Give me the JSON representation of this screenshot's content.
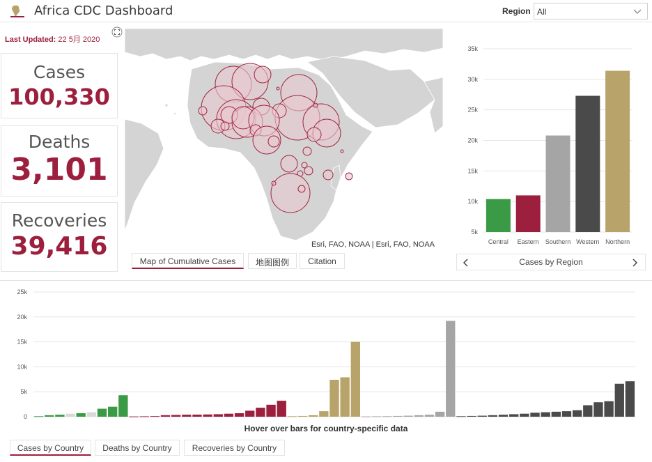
{
  "header": {
    "title": "Africa CDC Dashboard",
    "region_label": "Region",
    "region_value": "All"
  },
  "updated": {
    "label": "Last Updated:",
    "value": "22 5月 2020"
  },
  "kpis": {
    "cases": {
      "label": "Cases",
      "value": "100,330"
    },
    "deaths": {
      "label": "Deaths",
      "value": "3,101"
    },
    "recoveries": {
      "label": "Recoveries",
      "value": "39,416"
    }
  },
  "map": {
    "credit": "Esri, FAO, NOAA | Esri, FAO, NOAA",
    "tabs": [
      "Map of Cumulative Cases",
      "地图图例",
      "Citation"
    ],
    "active_tab": 0,
    "colors": {
      "land": "#d4d4d4",
      "water": "#ffffff",
      "bubble_fill": "#e8c8cf",
      "bubble_stroke": "#a0253f"
    }
  },
  "region_panel": {
    "title": "Cases by Region",
    "prev_icon": "chevron-left-icon",
    "next_icon": "chevron-right-icon"
  },
  "country_panel": {
    "note": "Hover over bars for country-specific data",
    "tabs": [
      "Cases by Country",
      "Deaths by Country",
      "Recoveries by Country"
    ],
    "active_tab": 0
  },
  "colors": {
    "accent": "#9c1f3d",
    "central": "#3a9a46",
    "eastern": "#9c1f3d",
    "southern": "#a5a5a5",
    "western": "#4a4a4a",
    "northern": "#b8a46a",
    "light": "#d9d9d9"
  },
  "chart_data": [
    {
      "type": "bar",
      "title": "Cases by Region",
      "categories": [
        "Central",
        "Eastern",
        "Southern",
        "Western",
        "Northern"
      ],
      "values": [
        10400,
        11000,
        20800,
        27300,
        31400
      ],
      "colors": [
        "#3a9a46",
        "#9c1f3d",
        "#a5a5a5",
        "#4a4a4a",
        "#b8a46a"
      ],
      "ylim": [
        5000,
        35000
      ],
      "yticks": [
        5000,
        10000,
        15000,
        20000,
        25000,
        30000,
        35000
      ],
      "ytick_labels": [
        "5k",
        "10k",
        "15k",
        "20k",
        "25k",
        "30k",
        "35k"
      ],
      "grid": true
    },
    {
      "type": "bar",
      "title": "Cases by Country",
      "ylim": [
        0,
        25000
      ],
      "yticks": [
        0,
        5000,
        10000,
        15000,
        20000,
        25000
      ],
      "ytick_labels": [
        "0",
        "5k",
        "10k",
        "15k",
        "20k",
        "25k"
      ],
      "grid": true,
      "values": [
        100,
        300,
        400,
        600,
        700,
        900,
        1600,
        2000,
        4300,
        50,
        80,
        120,
        300,
        350,
        400,
        420,
        450,
        500,
        600,
        700,
        1200,
        1800,
        2400,
        3200,
        100,
        150,
        300,
        1100,
        7400,
        7900,
        15000,
        50,
        80,
        100,
        150,
        200,
        300,
        400,
        1000,
        19200,
        100,
        150,
        200,
        300,
        400,
        500,
        600,
        800,
        900,
        1000,
        1100,
        1300,
        2300,
        2900,
        3100,
        6600,
        7100
      ],
      "colors": [
        "#3a9a46",
        "#3a9a46",
        "#3a9a46",
        "#d9d9d9",
        "#3a9a46",
        "#d9d9d9",
        "#3a9a46",
        "#3a9a46",
        "#3a9a46",
        "#9c1f3d",
        "#9c1f3d",
        "#9c1f3d",
        "#9c1f3d",
        "#9c1f3d",
        "#9c1f3d",
        "#9c1f3d",
        "#9c1f3d",
        "#9c1f3d",
        "#9c1f3d",
        "#9c1f3d",
        "#9c1f3d",
        "#9c1f3d",
        "#9c1f3d",
        "#9c1f3d",
        "#b8a46a",
        "#b8a46a",
        "#b8a46a",
        "#b8a46a",
        "#b8a46a",
        "#b8a46a",
        "#b8a46a",
        "#a5a5a5",
        "#a5a5a5",
        "#a5a5a5",
        "#a5a5a5",
        "#a5a5a5",
        "#a5a5a5",
        "#a5a5a5",
        "#a5a5a5",
        "#a5a5a5",
        "#4a4a4a",
        "#4a4a4a",
        "#4a4a4a",
        "#4a4a4a",
        "#4a4a4a",
        "#4a4a4a",
        "#4a4a4a",
        "#4a4a4a",
        "#4a4a4a",
        "#4a4a4a",
        "#4a4a4a",
        "#4a4a4a",
        "#4a4a4a",
        "#4a4a4a",
        "#4a4a4a",
        "#4a4a4a",
        "#4a4a4a"
      ]
    }
  ]
}
